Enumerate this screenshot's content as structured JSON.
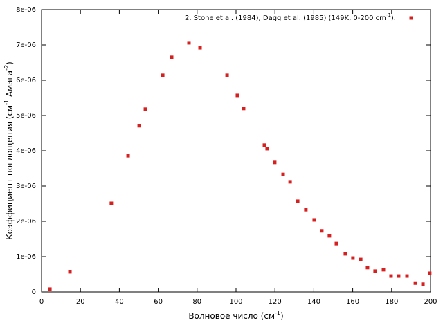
{
  "chart_data": {
    "type": "scatter",
    "xlabel": [
      "Волновое число (см",
      "-1",
      ")"
    ],
    "ylabel": [
      "Коэффициент поглощения (см",
      "-1",
      " Амага",
      "-2",
      ")"
    ],
    "xlim": [
      0,
      200
    ],
    "xticks": [
      0,
      20,
      40,
      60,
      80,
      100,
      120,
      140,
      160,
      180,
      200
    ],
    "ylim": [
      0,
      8e-06
    ],
    "yticks": [
      0,
      {
        "value": 1e-06,
        "label": "1e-06"
      },
      {
        "value": 2e-06,
        "label": "2e-06"
      },
      {
        "value": 3e-06,
        "label": "3e-06"
      },
      {
        "value": 4e-06,
        "label": "4e-06"
      },
      {
        "value": 5e-06,
        "label": "5e-06"
      },
      {
        "value": 6e-06,
        "label": "6e-06"
      },
      {
        "value": 7e-06,
        "label": "7e-06"
      },
      {
        "value": 8e-06,
        "label": "8e-06"
      }
    ],
    "legend": "top-right",
    "series": [
      {
        "name": [
          "2. Stone et al. (1984), Dagg et al. (1985) (149K, 0-200 cm",
          "-1",
          ")."
        ],
        "color": "#d62020",
        "x": [
          4.3,
          14.6,
          35.9,
          44.5,
          50.2,
          53.4,
          62.3,
          66.9,
          75.8,
          81.5,
          95.4,
          100.7,
          103.9,
          114.6,
          116.0,
          119.9,
          124.2,
          127.8,
          131.7,
          135.9,
          140.2,
          144.1,
          148.0,
          151.6,
          156.2,
          160.1,
          164.1,
          167.6,
          171.5,
          175.8,
          179.7,
          183.6,
          187.9,
          192.2,
          196.1,
          199.6
        ],
        "values": [
          8e-08,
          5.7e-07,
          2.51e-06,
          3.86e-06,
          4.71e-06,
          5.18e-06,
          6.14e-06,
          6.65e-06,
          7.06e-06,
          6.92e-06,
          6.14e-06,
          5.57e-06,
          5.2e-06,
          4.16e-06,
          4.06e-06,
          3.67e-06,
          3.33e-06,
          3.12e-06,
          2.57e-06,
          2.33e-06,
          2.04e-06,
          1.73e-06,
          1.59e-06,
          1.37e-06,
          1.08e-06,
          9.6e-07,
          9.2e-07,
          6.9e-07,
          5.9e-07,
          6.3e-07,
          4.5e-07,
          4.5e-07,
          4.5e-07,
          2.5e-07,
          2.2e-07,
          5.3e-07
        ]
      }
    ]
  }
}
